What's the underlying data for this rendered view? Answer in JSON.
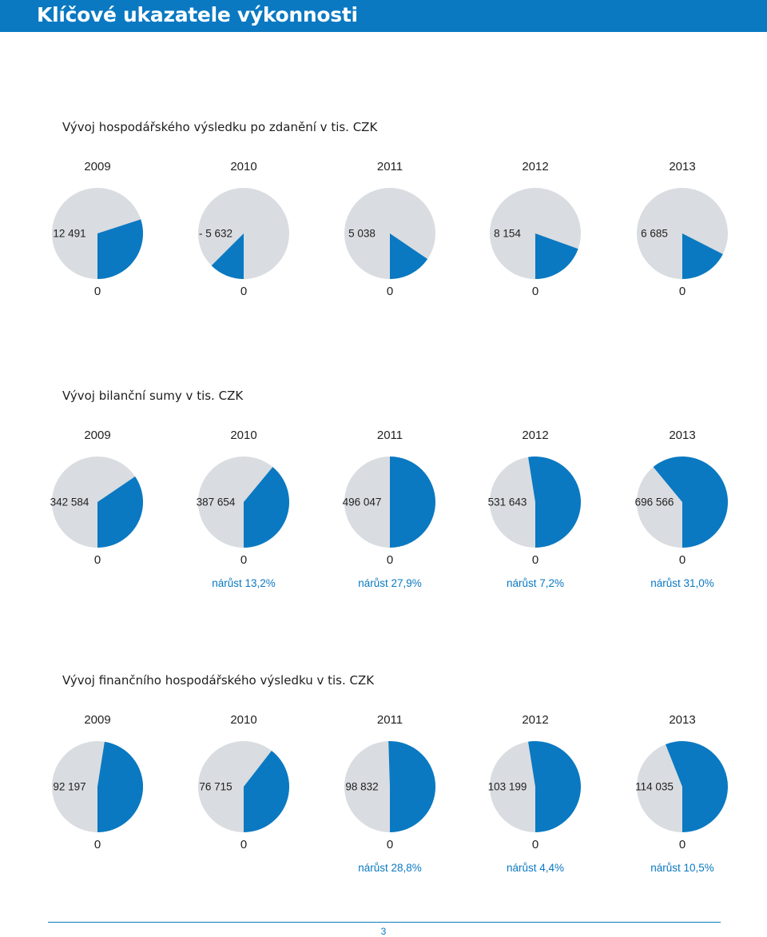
{
  "header": {
    "title": "Klíčové ukazatele výkonnosti"
  },
  "colors": {
    "accent": "#0a79c2",
    "pie_base": "#d9dce0",
    "text": "#222222"
  },
  "sections": [
    {
      "title": "Vývoj hospodářského výsledku po zdanění v tis. CZK",
      "items": [
        {
          "year": "2009",
          "value": "12 491",
          "zero": "0",
          "growth": ""
        },
        {
          "year": "2010",
          "value": "- 5 632",
          "zero": "0",
          "growth": ""
        },
        {
          "year": "2011",
          "value": "5 038",
          "zero": "0",
          "growth": ""
        },
        {
          "year": "2012",
          "value": "8 154",
          "zero": "0",
          "growth": ""
        },
        {
          "year": "2013",
          "value": "6 685",
          "zero": "0",
          "growth": ""
        }
      ]
    },
    {
      "title": "Vývoj bilanční sumy v tis. CZK",
      "items": [
        {
          "year": "2009",
          "value": "342 584",
          "zero": "0",
          "growth": ""
        },
        {
          "year": "2010",
          "value": "387 654",
          "zero": "0",
          "growth": "nárůst 13,2%"
        },
        {
          "year": "2011",
          "value": "496 047",
          "zero": "0",
          "growth": "nárůst 27,9%"
        },
        {
          "year": "2012",
          "value": "531 643",
          "zero": "0",
          "growth": "nárůst 7,2%"
        },
        {
          "year": "2013",
          "value": "696 566",
          "zero": "0",
          "growth": "nárůst 31,0%"
        }
      ]
    },
    {
      "title": "Vývoj finančního hospodářského výsledku v tis. CZK",
      "items": [
        {
          "year": "2009",
          "value": "92 197",
          "zero": "0",
          "growth": ""
        },
        {
          "year": "2010",
          "value": "76 715",
          "zero": "0",
          "growth": ""
        },
        {
          "year": "2011",
          "value": "98 832",
          "zero": "0",
          "growth": "nárůst 28,8%"
        },
        {
          "year": "2012",
          "value": "103 199",
          "zero": "0",
          "growth": "nárůst 4,4%"
        },
        {
          "year": "2013",
          "value": "114 035",
          "zero": "0",
          "growth": "nárůst 10,5%"
        }
      ]
    }
  ],
  "chart_data": [
    {
      "type": "pie",
      "title": "Vývoj hospodářského výsledku po zdanění v tis. CZK",
      "categories": [
        "2009",
        "2010",
        "2011",
        "2012",
        "2013"
      ],
      "values": [
        12491,
        -5632,
        5038,
        8154,
        6685
      ],
      "wedge_fraction": [
        0.3,
        0.125,
        0.155,
        0.195,
        0.175
      ],
      "wedge_direction": [
        "clockwise",
        "counterclockwise",
        "clockwise",
        "clockwise",
        "clockwise"
      ],
      "scale_min_label": "0"
    },
    {
      "type": "pie",
      "title": "Vývoj bilanční sumy v tis. CZK",
      "categories": [
        "2009",
        "2010",
        "2011",
        "2012",
        "2013"
      ],
      "values": [
        342584,
        387654,
        496047,
        531643,
        696566
      ],
      "wedge_fraction": [
        0.345,
        0.39,
        0.5,
        0.525,
        0.61
      ],
      "wedge_direction": [
        "clockwise",
        "clockwise",
        "clockwise",
        "clockwise",
        "clockwise"
      ],
      "growth_labels": [
        "",
        "nárůst 13,2%",
        "nárůst 27,9%",
        "nárůst 7,2%",
        "nárůst 31,0%"
      ],
      "scale_min_label": "0"
    },
    {
      "type": "pie",
      "title": "Vývoj finančního hospodářského výsledku v tis. CZK",
      "categories": [
        "2009",
        "2010",
        "2011",
        "2012",
        "2013"
      ],
      "values": [
        92197,
        76715,
        98832,
        103199,
        114035
      ],
      "wedge_fraction": [
        0.475,
        0.395,
        0.505,
        0.525,
        0.56
      ],
      "wedge_direction": [
        "clockwise",
        "clockwise",
        "clockwise",
        "clockwise",
        "clockwise"
      ],
      "growth_labels": [
        "",
        "",
        "nárůst 28,8%",
        "nárůst 4,4%",
        "nárůst 10,5%"
      ],
      "scale_min_label": "0"
    }
  ],
  "footer": {
    "page_number": "3"
  }
}
